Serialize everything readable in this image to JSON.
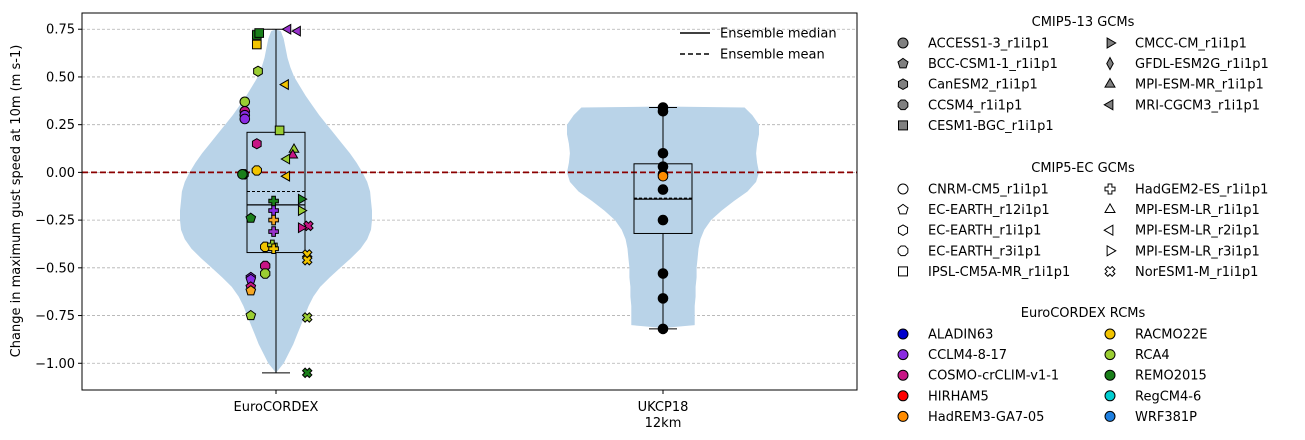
{
  "chart_data": {
    "type": "violin",
    "ylabel": "Change in maximum gust speed at 10m (m s-1)",
    "xlabel": "",
    "ylim": [
      -1.14,
      0.835
    ],
    "y_ticks": [
      0.75,
      0.5,
      0.25,
      0.0,
      -0.25,
      -0.5,
      -0.75,
      -1.0
    ],
    "y_tick_labels": [
      "0.75",
      "0.50",
      "0.25",
      "0.00",
      "−0.25",
      "−0.50",
      "−0.75",
      "−1.00"
    ],
    "grid": "horizontal dashed",
    "zero_line_color": "#8b0000",
    "violin_color": "#b9d3e8",
    "categories": [
      {
        "label": "EuroCORDEX",
        "sublabel": ""
      },
      {
        "label": "UKCP18",
        "sublabel": "12km"
      }
    ],
    "boxes": [
      {
        "whisker_low": -1.05,
        "q1": -0.42,
        "median": -0.17,
        "mean": -0.1,
        "q3": 0.21,
        "whisker_high": 0.75
      },
      {
        "whisker_low": -0.82,
        "q1": -0.32,
        "median": -0.14,
        "mean": -0.135,
        "q3": 0.045,
        "whisker_high": 0.34
      }
    ],
    "violins": [
      {
        "profile": [
          [
            0.75,
            0.0
          ],
          [
            0.74,
            0.05
          ],
          [
            0.7,
            0.08
          ],
          [
            0.65,
            0.1
          ],
          [
            0.6,
            0.12
          ],
          [
            0.55,
            0.15
          ],
          [
            0.5,
            0.19
          ],
          [
            0.45,
            0.25
          ],
          [
            0.4,
            0.31
          ],
          [
            0.35,
            0.38
          ],
          [
            0.3,
            0.45
          ],
          [
            0.25,
            0.53
          ],
          [
            0.2,
            0.61
          ],
          [
            0.15,
            0.69
          ],
          [
            0.1,
            0.77
          ],
          [
            0.05,
            0.84
          ],
          [
            0.0,
            0.9
          ],
          [
            -0.05,
            0.95
          ],
          [
            -0.1,
            0.98
          ],
          [
            -0.15,
            0.99
          ],
          [
            -0.2,
            1.0
          ],
          [
            -0.25,
            1.0
          ],
          [
            -0.3,
            0.99
          ],
          [
            -0.35,
            0.95
          ],
          [
            -0.4,
            0.88
          ],
          [
            -0.45,
            0.78
          ],
          [
            -0.5,
            0.67
          ],
          [
            -0.55,
            0.56
          ],
          [
            -0.6,
            0.46
          ],
          [
            -0.65,
            0.39
          ],
          [
            -0.7,
            0.34
          ],
          [
            -0.75,
            0.3
          ],
          [
            -0.8,
            0.26
          ],
          [
            -0.85,
            0.22
          ],
          [
            -0.9,
            0.18
          ],
          [
            -0.95,
            0.13
          ],
          [
            -1.0,
            0.08
          ],
          [
            -1.05,
            0.0
          ]
        ]
      },
      {
        "profile": [
          [
            0.345,
            0.0
          ],
          [
            0.34,
            0.85
          ],
          [
            0.3,
            0.93
          ],
          [
            0.25,
            1.0
          ],
          [
            0.2,
            1.0
          ],
          [
            0.15,
            0.98
          ],
          [
            0.1,
            0.97
          ],
          [
            0.05,
            0.98
          ],
          [
            0.0,
            1.0
          ],
          [
            -0.05,
            0.97
          ],
          [
            -0.1,
            0.88
          ],
          [
            -0.15,
            0.74
          ],
          [
            -0.2,
            0.61
          ],
          [
            -0.25,
            0.5
          ],
          [
            -0.3,
            0.43
          ],
          [
            -0.35,
            0.39
          ],
          [
            -0.4,
            0.37
          ],
          [
            -0.45,
            0.36
          ],
          [
            -0.5,
            0.35
          ],
          [
            -0.55,
            0.35
          ],
          [
            -0.6,
            0.34
          ],
          [
            -0.65,
            0.34
          ],
          [
            -0.7,
            0.33
          ],
          [
            -0.75,
            0.33
          ],
          [
            -0.8,
            0.33
          ],
          [
            -0.815,
            0.0
          ]
        ]
      }
    ],
    "points": [
      {
        "cat": 0,
        "dx": 0.1,
        "y": 0.75,
        "shape": "tri-left",
        "color": "#9932cc"
      },
      {
        "cat": 0,
        "dx": 0.18,
        "y": 0.74,
        "shape": "tri-left",
        "color": "#9932cc"
      },
      {
        "cat": 0,
        "dx": -0.16,
        "y": 0.72,
        "shape": "square",
        "color": "#1a7f1a"
      },
      {
        "cat": 0,
        "dx": -0.16,
        "y": 0.67,
        "shape": "square",
        "color": "#f2c400"
      },
      {
        "cat": 0,
        "dx": -0.14,
        "y": 0.73,
        "shape": "square",
        "color": "#1a7f1a"
      },
      {
        "cat": 0,
        "dx": -0.15,
        "y": 0.53,
        "shape": "hexagon",
        "color": "#9acd32"
      },
      {
        "cat": 0,
        "dx": 0.08,
        "y": 0.46,
        "shape": "tri-left",
        "color": "#f2c400"
      },
      {
        "cat": 0,
        "dx": -0.26,
        "y": 0.37,
        "shape": "circle",
        "color": "#9acd32"
      },
      {
        "cat": 0,
        "dx": -0.26,
        "y": 0.32,
        "shape": "circle",
        "color": "#c71585"
      },
      {
        "cat": 0,
        "dx": -0.26,
        "y": 0.3,
        "shape": "circle",
        "color": "#8a2be2"
      },
      {
        "cat": 0,
        "dx": -0.26,
        "y": 0.28,
        "shape": "circle",
        "color": "#8a2be2"
      },
      {
        "cat": 0,
        "dx": 0.03,
        "y": 0.22,
        "shape": "square",
        "color": "#9acd32"
      },
      {
        "cat": 0,
        "dx": -0.16,
        "y": 0.15,
        "shape": "hexagon",
        "color": "#c71585"
      },
      {
        "cat": 0,
        "dx": 0.15,
        "y": 0.12,
        "shape": "triangle",
        "color": "#9acd32"
      },
      {
        "cat": 0,
        "dx": 0.14,
        "y": 0.09,
        "shape": "triangle",
        "color": "#c71585"
      },
      {
        "cat": 0,
        "dx": 0.09,
        "y": 0.07,
        "shape": "tri-left",
        "color": "#9acd32"
      },
      {
        "cat": 0,
        "dx": -0.16,
        "y": 0.01,
        "shape": "octagon",
        "color": "#f2c400"
      },
      {
        "cat": 0,
        "dx": -0.27,
        "y": -0.01,
        "shape": "octagon",
        "color": "#1a7f1a"
      },
      {
        "cat": 0,
        "dx": -0.28,
        "y": -0.01,
        "shape": "circle",
        "color": "#1a7f1a"
      },
      {
        "cat": 0,
        "dx": 0.09,
        "y": -0.02,
        "shape": "tri-left",
        "color": "#f2c400"
      },
      {
        "cat": 0,
        "dx": 0.21,
        "y": -0.14,
        "shape": "tri-right",
        "color": "#1a7f1a"
      },
      {
        "cat": 0,
        "dx": -0.02,
        "y": -0.15,
        "shape": "plus",
        "color": "#1a7f1a"
      },
      {
        "cat": 0,
        "dx": -0.02,
        "y": -0.2,
        "shape": "plus",
        "color": "#8a2be2"
      },
      {
        "cat": 0,
        "dx": 0.21,
        "y": -0.2,
        "shape": "tri-right",
        "color": "#9acd32"
      },
      {
        "cat": 0,
        "dx": -0.21,
        "y": -0.24,
        "shape": "pentagon",
        "color": "#1a7f1a"
      },
      {
        "cat": 0,
        "dx": -0.02,
        "y": -0.25,
        "shape": "plus",
        "color": "#f5a623"
      },
      {
        "cat": 0,
        "dx": 0.27,
        "y": -0.28,
        "shape": "cross",
        "color": "#c71585"
      },
      {
        "cat": 0,
        "dx": 0.21,
        "y": -0.29,
        "shape": "tri-right",
        "color": "#c71585"
      },
      {
        "cat": 0,
        "dx": -0.02,
        "y": -0.31,
        "shape": "plus",
        "color": "#9932cc"
      },
      {
        "cat": 0,
        "dx": -0.09,
        "y": -0.39,
        "shape": "octagon",
        "color": "#f2c400"
      },
      {
        "cat": 0,
        "dx": -0.03,
        "y": -0.38,
        "shape": "plus",
        "color": "#9acd32"
      },
      {
        "cat": 0,
        "dx": -0.02,
        "y": -0.4,
        "shape": "plus",
        "color": "#f2c400"
      },
      {
        "cat": 0,
        "dx": 0.26,
        "y": -0.43,
        "shape": "cross",
        "color": "#f2c400"
      },
      {
        "cat": 0,
        "dx": 0.26,
        "y": -0.46,
        "shape": "cross",
        "color": "#f2c400"
      },
      {
        "cat": 0,
        "dx": -0.09,
        "y": -0.49,
        "shape": "octagon",
        "color": "#c71585"
      },
      {
        "cat": 0,
        "dx": -0.09,
        "y": -0.53,
        "shape": "octagon",
        "color": "#9acd32"
      },
      {
        "cat": 0,
        "dx": -0.21,
        "y": -0.55,
        "shape": "pentagon",
        "color": "#8a2be2"
      },
      {
        "cat": 0,
        "dx": -0.21,
        "y": -0.56,
        "shape": "pentagon",
        "color": "#8a2be2"
      },
      {
        "cat": 0,
        "dx": -0.21,
        "y": -0.6,
        "shape": "pentagon",
        "color": "#c71585"
      },
      {
        "cat": 0,
        "dx": -0.21,
        "y": -0.62,
        "shape": "pentagon",
        "color": "#f5a623"
      },
      {
        "cat": 0,
        "dx": -0.21,
        "y": -0.75,
        "shape": "pentagon",
        "color": "#9acd32"
      },
      {
        "cat": 0,
        "dx": 0.26,
        "y": -0.76,
        "shape": "cross",
        "color": "#9acd32"
      },
      {
        "cat": 0,
        "dx": 0.26,
        "y": -1.05,
        "shape": "cross",
        "color": "#1a7f1a"
      },
      {
        "cat": 1,
        "dx": 0.0,
        "y": 0.34,
        "shape": "circle",
        "color": "#000000"
      },
      {
        "cat": 1,
        "dx": 0.0,
        "y": 0.32,
        "shape": "circle",
        "color": "#000000"
      },
      {
        "cat": 1,
        "dx": 0.0,
        "y": 0.1,
        "shape": "circle",
        "color": "#000000"
      },
      {
        "cat": 1,
        "dx": 0.0,
        "y": 0.03,
        "shape": "circle",
        "color": "#000000"
      },
      {
        "cat": 1,
        "dx": 0.0,
        "y": -0.01,
        "shape": "circle",
        "color": "#000000"
      },
      {
        "cat": 1,
        "dx": 0.0,
        "y": -0.02,
        "shape": "circle",
        "color": "#ff8c00"
      },
      {
        "cat": 1,
        "dx": 0.0,
        "y": -0.09,
        "shape": "circle",
        "color": "#000000"
      },
      {
        "cat": 1,
        "dx": 0.0,
        "y": -0.25,
        "shape": "circle",
        "color": "#000000"
      },
      {
        "cat": 1,
        "dx": 0.0,
        "y": -0.53,
        "shape": "circle",
        "color": "#000000"
      },
      {
        "cat": 1,
        "dx": 0.0,
        "y": -0.66,
        "shape": "circle",
        "color": "#000000"
      },
      {
        "cat": 1,
        "dx": 0.0,
        "y": -0.82,
        "shape": "circle",
        "color": "#000000"
      }
    ],
    "legend_lines": {
      "placement": "top-right",
      "items": [
        {
          "label": "Ensemble median",
          "style": "solid"
        },
        {
          "label": "Ensemble mean",
          "style": "dashed"
        }
      ]
    },
    "legend_groups": [
      {
        "title": "CMIP5-13 GCMs",
        "fill": "#808080",
        "items": [
          {
            "label": "ACCESS1-3_r1i1p1",
            "shape": "circle"
          },
          {
            "label": "BCC-CSM1-1_r1i1p1",
            "shape": "pentagon"
          },
          {
            "label": "CanESM2_r1i1p1",
            "shape": "hexagon"
          },
          {
            "label": "CCSM4_r1i1p1",
            "shape": "octagon"
          },
          {
            "label": "CESM1-BGC_r1i1p1",
            "shape": "square"
          },
          {
            "label": "CMCC-CM_r1i1p1",
            "shape": "tri-right"
          },
          {
            "label": "GFDL-ESM2G_r1i1p1",
            "shape": "diamond"
          },
          {
            "label": "MPI-ESM-MR_r1i1p1",
            "shape": "triangle"
          },
          {
            "label": "MRI-CGCM3_r1i1p1",
            "shape": "tri-left"
          }
        ]
      },
      {
        "title": "CMIP5-EC GCMs",
        "fill": "#ffffff",
        "items": [
          {
            "label": "CNRM-CM5_r1i1p1",
            "shape": "circle"
          },
          {
            "label": "EC-EARTH_r12i1p1",
            "shape": "pentagon"
          },
          {
            "label": "EC-EARTH_r1i1p1",
            "shape": "hexagon"
          },
          {
            "label": "EC-EARTH_r3i1p1",
            "shape": "octagon"
          },
          {
            "label": "IPSL-CM5A-MR_r1i1p1",
            "shape": "square"
          },
          {
            "label": "HadGEM2-ES_r1i1p1",
            "shape": "plus"
          },
          {
            "label": "MPI-ESM-LR_r1i1p1",
            "shape": "triangle"
          },
          {
            "label": "MPI-ESM-LR_r2i1p1",
            "shape": "tri-left"
          },
          {
            "label": "MPI-ESM-LR_r3i1p1",
            "shape": "tri-right"
          },
          {
            "label": "NorESM1-M_r1i1p1",
            "shape": "cross"
          }
        ]
      },
      {
        "title": "EuroCORDEX RCMs",
        "items": [
          {
            "label": "ALADIN63",
            "shape": "circle",
            "color": "#0000cd"
          },
          {
            "label": "CCLM4-8-17",
            "shape": "circle",
            "color": "#8a2be2"
          },
          {
            "label": "COSMO-crCLIM-v1-1",
            "shape": "circle",
            "color": "#c71585"
          },
          {
            "label": "HIRHAM5",
            "shape": "circle",
            "color": "#ff0000"
          },
          {
            "label": "HadREM3-GA7-05",
            "shape": "circle",
            "color": "#ff8c00"
          },
          {
            "label": "RACMO22E",
            "shape": "circle",
            "color": "#f2c400"
          },
          {
            "label": "RCA4",
            "shape": "circle",
            "color": "#9acd32"
          },
          {
            "label": "REMO2015",
            "shape": "circle",
            "color": "#1a7f1a"
          },
          {
            "label": "RegCM4-6",
            "shape": "circle",
            "color": "#00ced1"
          },
          {
            "label": "WRF381P",
            "shape": "circle",
            "color": "#1e7fe0"
          }
        ]
      }
    ]
  }
}
